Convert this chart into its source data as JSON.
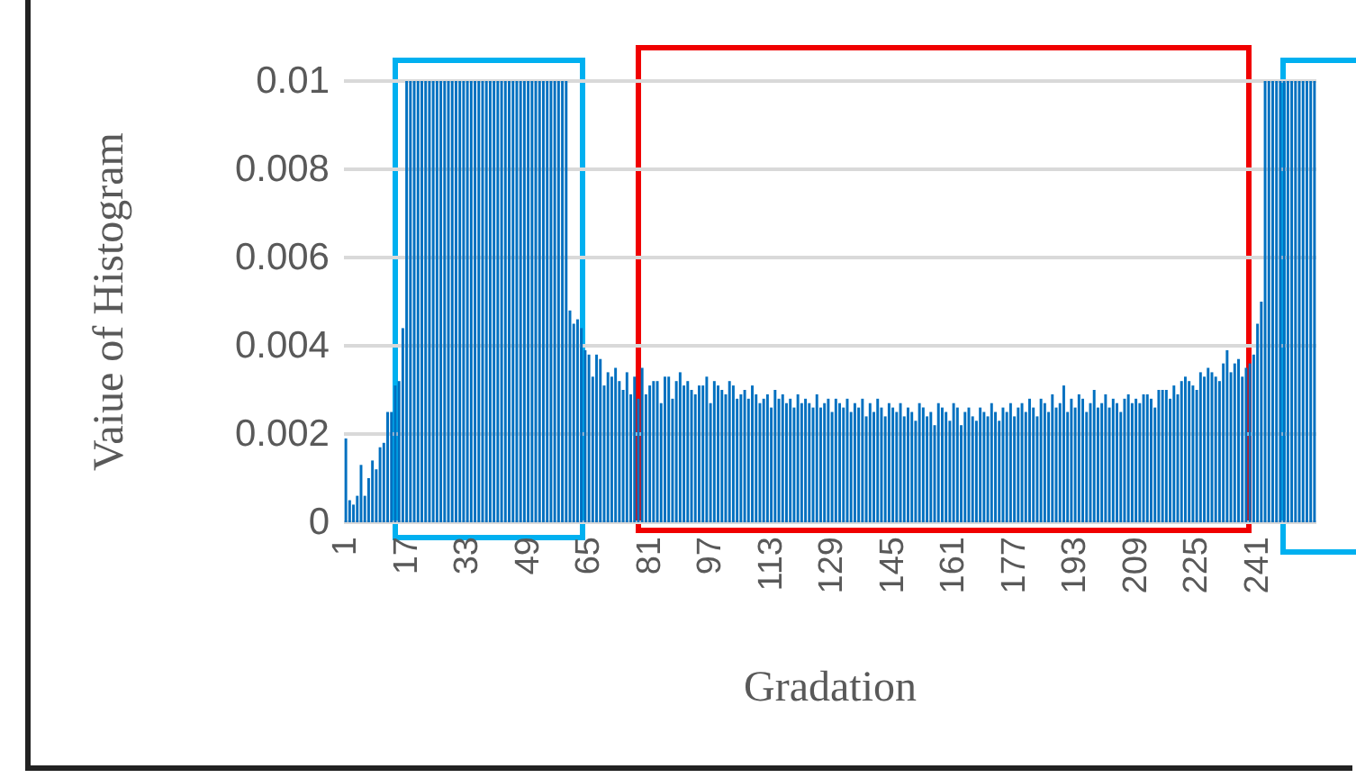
{
  "chart_data": {
    "type": "bar",
    "xlabel": "Gradation",
    "ylabel": "Vaiue of Histogram",
    "categories": [
      "1",
      null,
      null,
      null,
      null,
      null,
      null,
      null,
      null,
      null,
      null,
      null,
      null,
      null,
      null,
      null,
      "17",
      null,
      null,
      null,
      null,
      null,
      null,
      null,
      null,
      null,
      null,
      null,
      null,
      null,
      null,
      null,
      "33",
      null,
      null,
      null,
      null,
      null,
      null,
      null,
      null,
      null,
      null,
      null,
      null,
      null,
      null,
      null,
      "49",
      null,
      null,
      null,
      null,
      null,
      null,
      null,
      null,
      null,
      null,
      null,
      null,
      null,
      null,
      null,
      "65",
      null,
      null,
      null,
      null,
      null,
      null,
      null,
      null,
      null,
      null,
      null,
      null,
      null,
      null,
      null,
      "81",
      null,
      null,
      null,
      null,
      null,
      null,
      null,
      null,
      null,
      null,
      null,
      null,
      null,
      null,
      null,
      "97",
      null,
      null,
      null,
      null,
      null,
      null,
      null,
      null,
      null,
      null,
      null,
      null,
      null,
      null,
      null,
      "113",
      null,
      null,
      null,
      null,
      null,
      null,
      null,
      null,
      null,
      null,
      null,
      null,
      null,
      null,
      null,
      "129",
      null,
      null,
      null,
      null,
      null,
      null,
      null,
      null,
      null,
      null,
      null,
      null,
      null,
      null,
      null,
      "145",
      null,
      null,
      null,
      null,
      null,
      null,
      null,
      null,
      null,
      null,
      null,
      null,
      null,
      null,
      null,
      "161",
      null,
      null,
      null,
      null,
      null,
      null,
      null,
      null,
      null,
      null,
      null,
      null,
      null,
      null,
      null,
      "177",
      null,
      null,
      null,
      null,
      null,
      null,
      null,
      null,
      null,
      null,
      null,
      null,
      null,
      null,
      null,
      "193",
      null,
      null,
      null,
      null,
      null,
      null,
      null,
      null,
      null,
      null,
      null,
      null,
      null,
      null,
      null,
      "209",
      null,
      null,
      null,
      null,
      null,
      null,
      null,
      null,
      null,
      null,
      null,
      null,
      null,
      null,
      null,
      "225",
      null,
      null,
      null,
      null,
      null,
      null,
      null,
      null,
      null,
      null,
      null,
      null,
      null,
      null,
      null,
      "241",
      null,
      null,
      null,
      null,
      null,
      null,
      null,
      null,
      null,
      null,
      null,
      null,
      null,
      null,
      null
    ],
    "values": [
      0.0019,
      0.0005,
      0.0004,
      0.0006,
      0.0013,
      0.0006,
      0.001,
      0.0014,
      0.0012,
      0.0017,
      0.0018,
      0.0025,
      0.0025,
      0.0031,
      0.0032,
      0.0044,
      0.01,
      0.01,
      0.01,
      0.01,
      0.01,
      0.01,
      0.01,
      0.01,
      0.01,
      0.01,
      0.01,
      0.01,
      0.01,
      0.01,
      0.01,
      0.01,
      0.01,
      0.01,
      0.01,
      0.01,
      0.01,
      0.01,
      0.01,
      0.01,
      0.01,
      0.01,
      0.01,
      0.01,
      0.01,
      0.01,
      0.01,
      0.01,
      0.01,
      0.01,
      0.01,
      0.01,
      0.01,
      0.01,
      0.01,
      0.01,
      0.01,
      0.01,
      0.01,
      0.0048,
      0.0045,
      0.0046,
      0.0044,
      0.0039,
      0.0038,
      0.0033,
      0.0038,
      0.0037,
      0.0031,
      0.0034,
      0.0033,
      0.0035,
      0.0032,
      0.003,
      0.0034,
      0.0029,
      0.0033,
      0.0028,
      0.0035,
      0.0029,
      0.0031,
      0.0032,
      0.0032,
      0.0027,
      0.0033,
      0.0033,
      0.0028,
      0.0032,
      0.0034,
      0.0031,
      0.0032,
      0.003,
      0.0029,
      0.0031,
      0.0031,
      0.0033,
      0.0027,
      0.0032,
      0.0031,
      0.003,
      0.0029,
      0.0032,
      0.0031,
      0.0028,
      0.0029,
      0.003,
      0.0028,
      0.0031,
      0.0029,
      0.0027,
      0.0028,
      0.0029,
      0.0026,
      0.003,
      0.0028,
      0.0029,
      0.0027,
      0.0028,
      0.0026,
      0.0029,
      0.0027,
      0.0028,
      0.0027,
      0.0026,
      0.0029,
      0.0026,
      0.0027,
      0.0028,
      0.0025,
      0.0028,
      0.0027,
      0.0026,
      0.0028,
      0.0025,
      0.0027,
      0.0026,
      0.0028,
      0.0024,
      0.0027,
      0.0025,
      0.0028,
      0.0026,
      0.0024,
      0.0027,
      0.0026,
      0.0025,
      0.0027,
      0.0024,
      0.0026,
      0.0025,
      0.0023,
      0.0027,
      0.0026,
      0.0024,
      0.0025,
      0.0022,
      0.0027,
      0.0026,
      0.0025,
      0.0023,
      0.0027,
      0.0026,
      0.0022,
      0.0025,
      0.0026,
      0.0024,
      0.0023,
      0.0026,
      0.0025,
      0.0024,
      0.0027,
      0.0025,
      0.0023,
      0.0026,
      0.0025,
      0.0027,
      0.0024,
      0.0026,
      0.0027,
      0.0025,
      0.0028,
      0.0026,
      0.0024,
      0.0028,
      0.0027,
      0.0025,
      0.0029,
      0.0026,
      0.0027,
      0.0031,
      0.0025,
      0.0028,
      0.0026,
      0.0029,
      0.0028,
      0.0025,
      0.0027,
      0.003,
      0.0026,
      0.0027,
      0.0029,
      0.0026,
      0.0028,
      0.0027,
      0.0025,
      0.0028,
      0.0029,
      0.0027,
      0.0028,
      0.0027,
      0.0029,
      0.0029,
      0.0028,
      0.0026,
      0.003,
      0.003,
      0.003,
      0.0028,
      0.0031,
      0.0029,
      0.0032,
      0.0033,
      0.0032,
      0.0031,
      0.003,
      0.0034,
      0.0033,
      0.0035,
      0.0034,
      0.0033,
      0.0032,
      0.0036,
      0.0039,
      0.0034,
      0.0036,
      0.0037,
      0.0033,
      0.0035,
      0.0036,
      0.0038,
      0.0045,
      0.005,
      0.01,
      0.01,
      0.01,
      0.01,
      0.01,
      0.01,
      0.01,
      0.01,
      0.01,
      0.01,
      0.01,
      0.01,
      0.01,
      0.01
    ],
    "color": "#0070c0",
    "ylim": [
      0,
      0.01
    ],
    "yticks": [
      0,
      0.002,
      0.004,
      0.006,
      0.008,
      0.01
    ],
    "grid": "y"
  }
}
